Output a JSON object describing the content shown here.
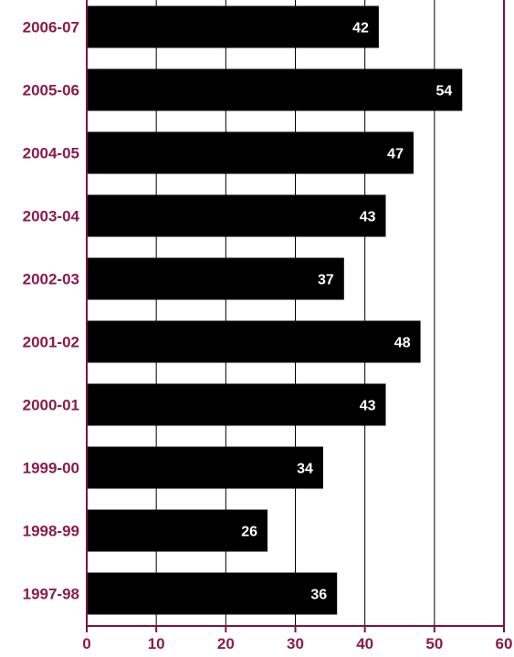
{
  "chart_data": {
    "type": "bar",
    "orientation": "horizontal",
    "title": "",
    "xlabel": "",
    "ylabel": "",
    "categories": [
      "2006-07",
      "2005-06",
      "2004-05",
      "2003-04",
      "2002-03",
      "2001-02",
      "2000-01",
      "1999-00",
      "1998-99",
      "1997-98"
    ],
    "values": [
      42,
      54,
      47,
      43,
      37,
      48,
      43,
      34,
      26,
      36
    ],
    "value_labels": [
      "42",
      "54",
      "47",
      "43",
      "37",
      "48",
      "43",
      "34",
      "26",
      "36"
    ],
    "xlim": [
      0,
      60
    ],
    "x_ticks": [
      "0",
      "10",
      "20",
      "30",
      "40",
      "50",
      "60"
    ],
    "grid": "vertical",
    "legend": "none",
    "colors": {
      "bar": "#000000",
      "axis": "#7a1540",
      "label": "#8a1c4a",
      "grid": "#000000",
      "data_label": "#ffffff"
    }
  }
}
